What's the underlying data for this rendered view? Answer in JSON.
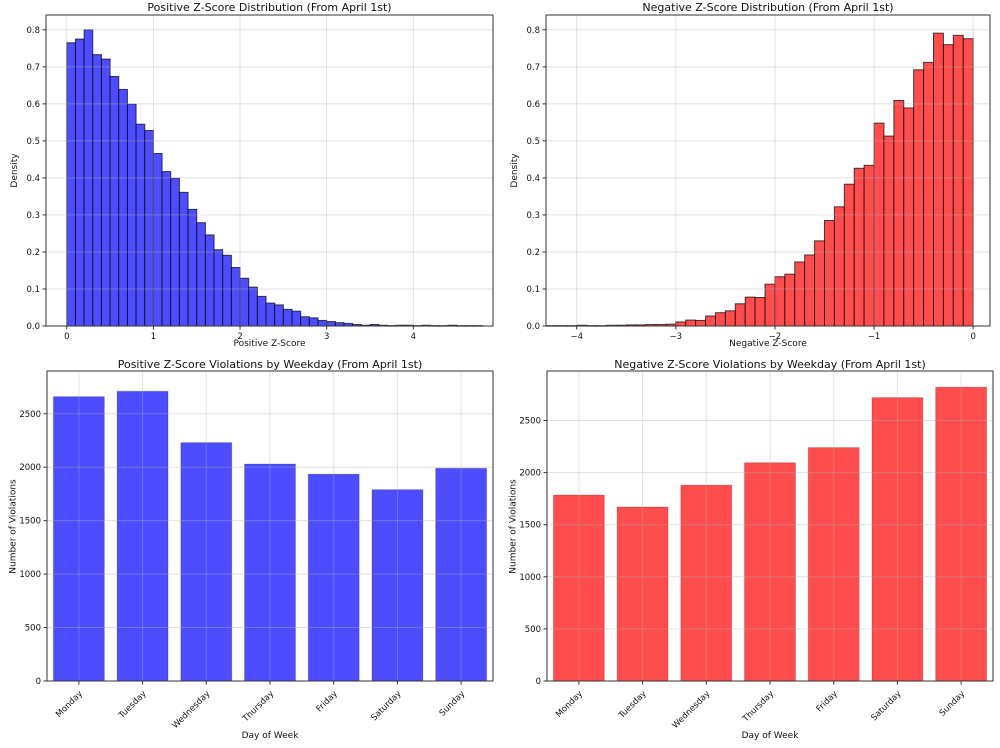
{
  "figure": {
    "background": "#ffffff",
    "text_color": "#111111",
    "grid_color": "#b0b0b0",
    "spine_color": "#333333"
  },
  "chart_data": [
    {
      "type": "bar",
      "subtype": "histogram",
      "title": "Positive Z-Score Distribution (From April 1st)",
      "xlabel": "Positive Z-Score",
      "ylabel": "Density",
      "bar_color": "#4d4dff",
      "edge_color": "rgba(0,0,0,0.7)",
      "grid": true,
      "legend": "none",
      "bin_start": 0.0,
      "bin_width": 0.1,
      "values": [
        0.765,
        0.775,
        0.8,
        0.733,
        0.721,
        0.674,
        0.639,
        0.599,
        0.545,
        0.528,
        0.466,
        0.417,
        0.399,
        0.361,
        0.315,
        0.279,
        0.246,
        0.206,
        0.191,
        0.158,
        0.129,
        0.105,
        0.08,
        0.062,
        0.057,
        0.045,
        0.04,
        0.025,
        0.022,
        0.015,
        0.012,
        0.009,
        0.007,
        0.004,
        0.002,
        0.004,
        0.002,
        0.001,
        0.002,
        0.002,
        0.001,
        0.002,
        0.001,
        0.001,
        0.002,
        0.001,
        0.001,
        0.001
      ],
      "xlim": [
        -0.24,
        4.92
      ],
      "ylim": [
        0,
        0.84
      ],
      "xticks": [
        [
          0,
          "0"
        ],
        [
          1,
          "1"
        ],
        [
          2,
          "2"
        ],
        [
          3,
          "3"
        ],
        [
          4,
          "4"
        ]
      ],
      "yticks": [
        [
          0.0,
          "0.0"
        ],
        [
          0.1,
          "0.1"
        ],
        [
          0.2,
          "0.2"
        ],
        [
          0.3,
          "0.3"
        ],
        [
          0.4,
          "0.4"
        ],
        [
          0.5,
          "0.5"
        ],
        [
          0.6,
          "0.6"
        ],
        [
          0.7,
          "0.7"
        ],
        [
          0.8,
          "0.8"
        ]
      ]
    },
    {
      "type": "bar",
      "subtype": "histogram",
      "title": "Negative Z-Score Distribution (From April 1st)",
      "xlabel": "Negative Z-Score",
      "ylabel": "Density",
      "bar_color": "#ff4d4d",
      "edge_color": "rgba(0,0,0,0.7)",
      "grid": true,
      "legend": "none",
      "bin_start": -4.3,
      "bin_width": 0.1,
      "values": [
        0.001,
        0.001,
        0.001,
        0.002,
        0.001,
        0.001,
        0.002,
        0.002,
        0.003,
        0.003,
        0.004,
        0.004,
        0.005,
        0.011,
        0.016,
        0.015,
        0.027,
        0.036,
        0.041,
        0.06,
        0.078,
        0.077,
        0.113,
        0.133,
        0.14,
        0.173,
        0.192,
        0.23,
        0.285,
        0.322,
        0.383,
        0.426,
        0.434,
        0.548,
        0.513,
        0.609,
        0.589,
        0.692,
        0.712,
        0.791,
        0.76,
        0.785,
        0.776
      ],
      "xlim": [
        -4.31,
        0.17
      ],
      "ylim": [
        0,
        0.84
      ],
      "xticks": [
        [
          -4,
          "−4"
        ],
        [
          -3,
          "−3"
        ],
        [
          -2,
          "−2"
        ],
        [
          -1,
          "−1"
        ],
        [
          0,
          "0"
        ]
      ],
      "yticks": [
        [
          0.0,
          "0.0"
        ],
        [
          0.1,
          "0.1"
        ],
        [
          0.2,
          "0.2"
        ],
        [
          0.3,
          "0.3"
        ],
        [
          0.4,
          "0.4"
        ],
        [
          0.5,
          "0.5"
        ],
        [
          0.6,
          "0.6"
        ],
        [
          0.7,
          "0.7"
        ],
        [
          0.8,
          "0.8"
        ]
      ]
    },
    {
      "type": "bar",
      "subtype": "category",
      "title": "Positive Z-Score Violations by Weekday (From April 1st)",
      "xlabel": "Day of Week",
      "ylabel": "Number of Violations",
      "bar_color": "#4d4dff",
      "edge_color": "rgba(0,0,0,0.18)",
      "grid": true,
      "legend": "none",
      "categories": [
        "Monday",
        "Tuesday",
        "Wednesday",
        "Thursday",
        "Friday",
        "Saturday",
        "Sunday"
      ],
      "values": [
        2660,
        2710,
        2230,
        2030,
        1935,
        1790,
        1990
      ],
      "ylim": [
        0,
        2900
      ],
      "yticks": [
        [
          0,
          "0"
        ],
        [
          500,
          "500"
        ],
        [
          1000,
          "1000"
        ],
        [
          1500,
          "1500"
        ],
        [
          2000,
          "2000"
        ],
        [
          2500,
          "2500"
        ]
      ]
    },
    {
      "type": "bar",
      "subtype": "category",
      "title": "Negative Z-Score Violations by Weekday (From April 1st)",
      "xlabel": "Day of Week",
      "ylabel": "Number of Violations",
      "bar_color": "#ff4d4d",
      "edge_color": "rgba(0,0,0,0.18)",
      "grid": true,
      "legend": "none",
      "categories": [
        "Monday",
        "Tuesday",
        "Wednesday",
        "Thursday",
        "Friday",
        "Saturday",
        "Sunday"
      ],
      "values": [
        1785,
        1670,
        1880,
        2095,
        2240,
        2720,
        2820
      ],
      "ylim": [
        0,
        2975
      ],
      "yticks": [
        [
          0,
          "0"
        ],
        [
          500,
          "500"
        ],
        [
          1000,
          "1000"
        ],
        [
          1500,
          "1500"
        ],
        [
          2000,
          "2000"
        ],
        [
          2500,
          "2500"
        ]
      ]
    }
  ]
}
